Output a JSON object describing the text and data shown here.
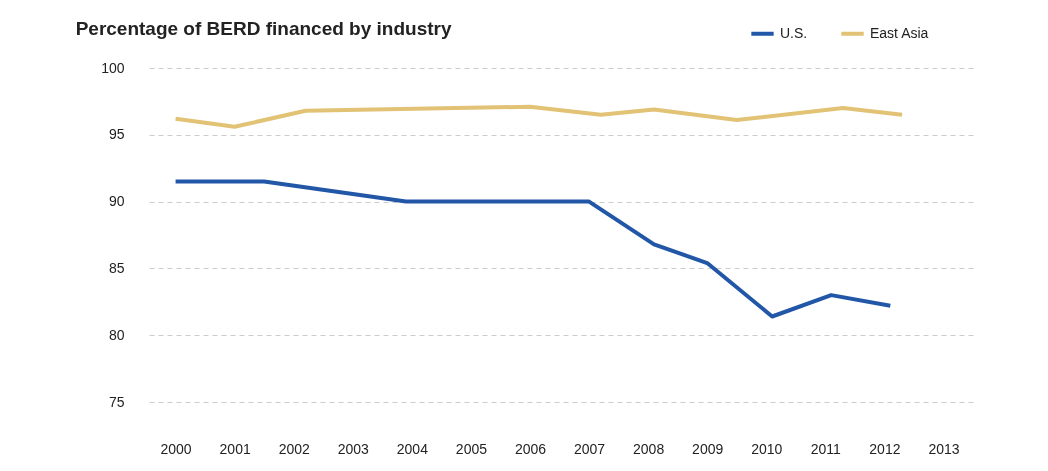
{
  "chart_data": {
    "type": "line",
    "title": "Percentage of BERD financed by industry",
    "xlim": [
      1999.55,
      2013.5
    ],
    "xticks": [
      2000,
      2001,
      2002,
      2003,
      2004,
      2005,
      2006,
      2007,
      2008,
      2009,
      2010,
      2011,
      2012,
      2013
    ],
    "ylim": [
      75,
      100
    ],
    "yticks": [
      75,
      80,
      85,
      90,
      95,
      100
    ],
    "grid": "y",
    "legend": "top right",
    "marker": "none",
    "line_style": "solid",
    "series": [
      {
        "name": "U.S.",
        "color": "#2257a8",
        "x": [
          2000,
          2001.5,
          2003.9,
          2007.0,
          2008.1,
          2009.0,
          2010.1,
          2011.1,
          2012.1
        ],
        "values": [
          91.5,
          91.5,
          90.0,
          90.0,
          86.8,
          85.4,
          81.4,
          83.0,
          82.2
        ]
      },
      {
        "name": "East Asia",
        "color": "#e2c275",
        "x": [
          2000,
          2001.0,
          2002.2,
          2006.0,
          2007.2,
          2008.1,
          2009.5,
          2011.3,
          2012.3
        ],
        "values": [
          96.2,
          95.6,
          96.8,
          97.1,
          96.5,
          96.9,
          96.1,
          97.0,
          96.5
        ]
      }
    ]
  }
}
